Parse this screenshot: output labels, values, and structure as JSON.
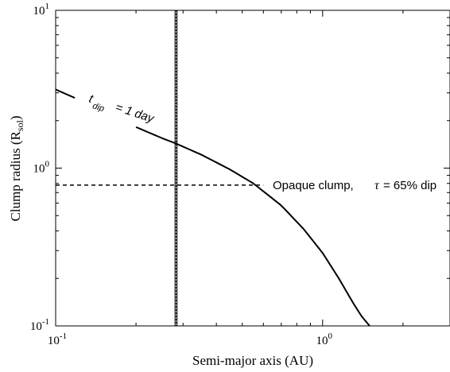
{
  "chart_data": {
    "type": "line",
    "xlabel": "Semi-major axis (AU)",
    "ylabel": "Clump radius (R",
    "ylabel_sub": "sol",
    "ylabel_close": ")",
    "xscale": "log",
    "yscale": "log",
    "xlim": [
      0.1,
      3.0
    ],
    "ylim": [
      0.1,
      10
    ],
    "grid": false,
    "x_ticks": [
      {
        "value": 0.1,
        "base": "10",
        "exp": "-1"
      },
      {
        "value": 1,
        "base": "10",
        "exp": "0"
      }
    ],
    "y_ticks": [
      {
        "value": 0.1,
        "base": "10",
        "exp": "-1"
      },
      {
        "value": 1,
        "base": "10",
        "exp": "0"
      },
      {
        "value": 10,
        "base": "10",
        "exp": "1"
      }
    ],
    "series": [
      {
        "x": [
          0.1,
          0.12,
          0.15,
          0.2,
          0.25,
          0.28,
          0.35,
          0.45,
          0.55,
          0.7,
          0.85,
          1.0,
          1.15,
          1.3,
          1.4,
          1.5
        ],
        "y": [
          3.15,
          2.75,
          2.3,
          1.82,
          1.55,
          1.44,
          1.22,
          0.98,
          0.8,
          0.58,
          0.41,
          0.29,
          0.2,
          0.14,
          0.115,
          0.1
        ]
      }
    ],
    "hline": {
      "y": 0.78
    },
    "vband": {
      "x": [
        0.28,
        0.285
      ]
    },
    "annotations": {
      "curve_t": "t",
      "curve_sub": "dip",
      "curve_rest": "= 1 day",
      "clump_text": "Opaque clump,",
      "tau_symbol": "τ",
      "tau_text": "= 65% dip"
    }
  }
}
